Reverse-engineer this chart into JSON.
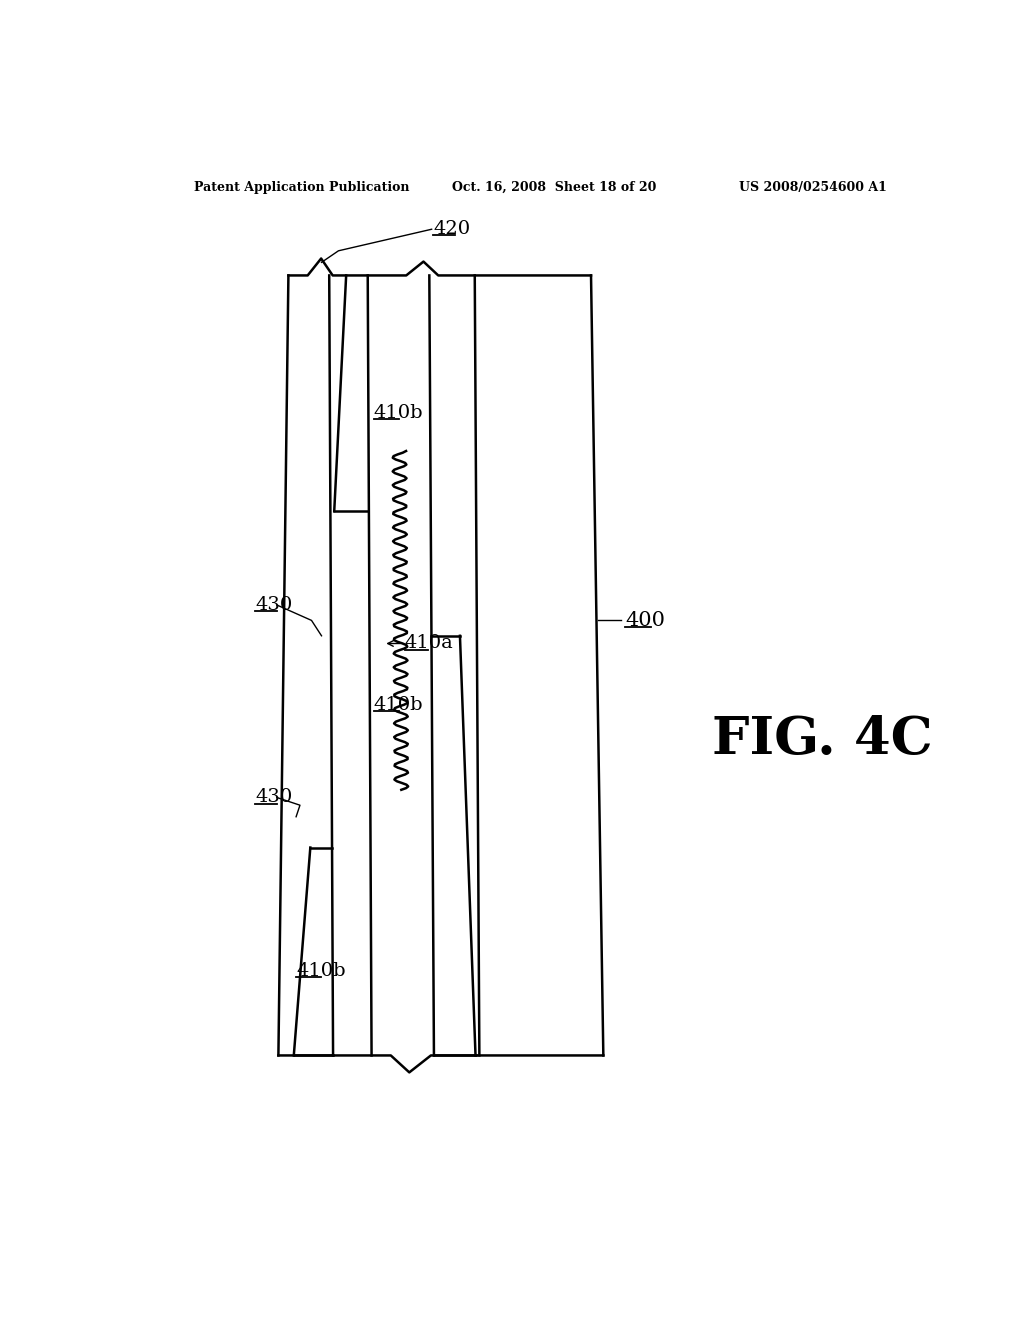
{
  "header_left": "Patent Application Publication",
  "header_center": "Oct. 16, 2008  Sheet 18 of 20",
  "header_right": "US 2008/0254600 A1",
  "fig_label": "FIG. 4C",
  "background_color": "#ffffff",
  "line_color": "#000000",
  "label_400": "400",
  "label_410a": "410a",
  "label_410b_1": "410b",
  "label_410b_2": "410b",
  "label_410b_3": "410b",
  "label_420": "420",
  "label_430_upper": "430",
  "label_430_lower": "430",
  "header_fontsize": 9,
  "fig_fontsize": 38,
  "label_fontsize": 14
}
